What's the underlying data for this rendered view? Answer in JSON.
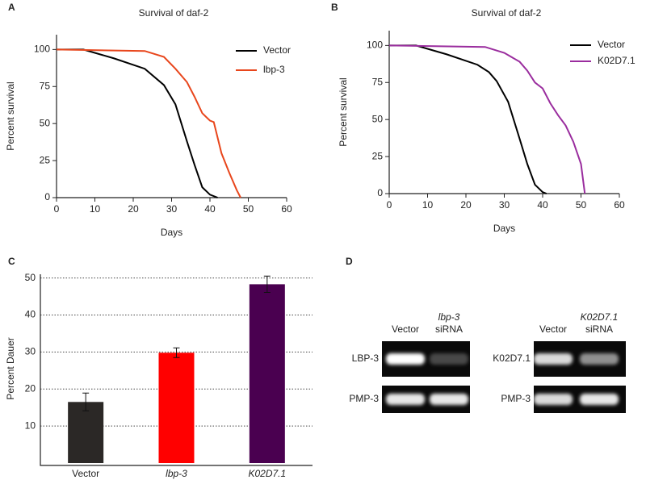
{
  "chart_data": [
    {
      "type": "line",
      "panel": "A",
      "title": "Survival of daf-2",
      "x_label": "Days",
      "y_label": "Percent survival",
      "xlim": [
        0,
        60
      ],
      "xticks": [
        0,
        10,
        20,
        30,
        40,
        50,
        60
      ],
      "ylim": [
        0,
        110
      ],
      "yticks": [
        0,
        25,
        50,
        75,
        100
      ],
      "series": [
        {
          "name": "Vector",
          "color": "#000000",
          "x": [
            0,
            7,
            15,
            23,
            28,
            31,
            34,
            36,
            38,
            40,
            42
          ],
          "values": [
            100,
            100,
            94,
            87,
            76,
            63,
            38,
            22,
            7,
            2,
            0
          ]
        },
        {
          "name": "lbp-3",
          "color": "#e8461c",
          "x": [
            0,
            23,
            28,
            31,
            34,
            36,
            38,
            40,
            41,
            43,
            45,
            47,
            48
          ],
          "values": [
            100,
            99,
            95,
            87,
            78,
            68,
            57,
            52,
            51,
            30,
            17,
            5,
            0
          ]
        }
      ]
    },
    {
      "type": "line",
      "panel": "B",
      "title": "Survival of daf-2",
      "x_label": "Days",
      "y_label": "Percent survival",
      "xlim": [
        0,
        60
      ],
      "xticks": [
        0,
        10,
        20,
        30,
        40,
        50,
        60
      ],
      "ylim": [
        0,
        110
      ],
      "yticks": [
        0,
        25,
        50,
        75,
        100
      ],
      "series": [
        {
          "name": "Vector",
          "color": "#000000",
          "x": [
            0,
            7,
            15,
            23,
            26,
            28,
            31,
            34,
            36,
            38,
            40,
            41
          ],
          "values": [
            100,
            100,
            94,
            87,
            82,
            76,
            62,
            37,
            20,
            6,
            1,
            0
          ]
        },
        {
          "name": "K02D7.1",
          "color": "#9a2d9e",
          "x": [
            0,
            25,
            30,
            34,
            36,
            38,
            40,
            42,
            44,
            46,
            48,
            50,
            51
          ],
          "values": [
            100,
            99,
            95,
            89,
            83,
            75,
            71,
            61,
            53,
            46,
            35,
            20,
            0
          ]
        }
      ]
    },
    {
      "type": "bar",
      "panel": "C",
      "y_label": "Percent Dauer",
      "categories": [
        "Vector",
        "lbp-3",
        "K02D7.1"
      ],
      "category_italic": [
        false,
        true,
        true
      ],
      "values": [
        16.5,
        29.8,
        48.3
      ],
      "errors": [
        2.4,
        1.3,
        2.2
      ],
      "colors": [
        "#2b2826",
        "#ff0000",
        "#4a0050"
      ],
      "ylim": [
        0,
        51
      ],
      "yticks": [
        10,
        20,
        30,
        40,
        50
      ],
      "grid": true
    },
    {
      "type": "gel",
      "panel": "D",
      "groups": [
        {
          "lanes": [
            {
              "label": "Vector"
            },
            {
              "label": "lbp-3",
              "sublabel": "siRNA"
            }
          ],
          "rows": [
            "LBP-3",
            "PMP-3"
          ]
        },
        {
          "lanes": [
            {
              "label": "Vector"
            },
            {
              "label": "K02D7.1",
              "sublabel": "siRNA"
            }
          ],
          "rows": [
            "K02D7.1",
            "PMP-3"
          ]
        }
      ]
    }
  ]
}
